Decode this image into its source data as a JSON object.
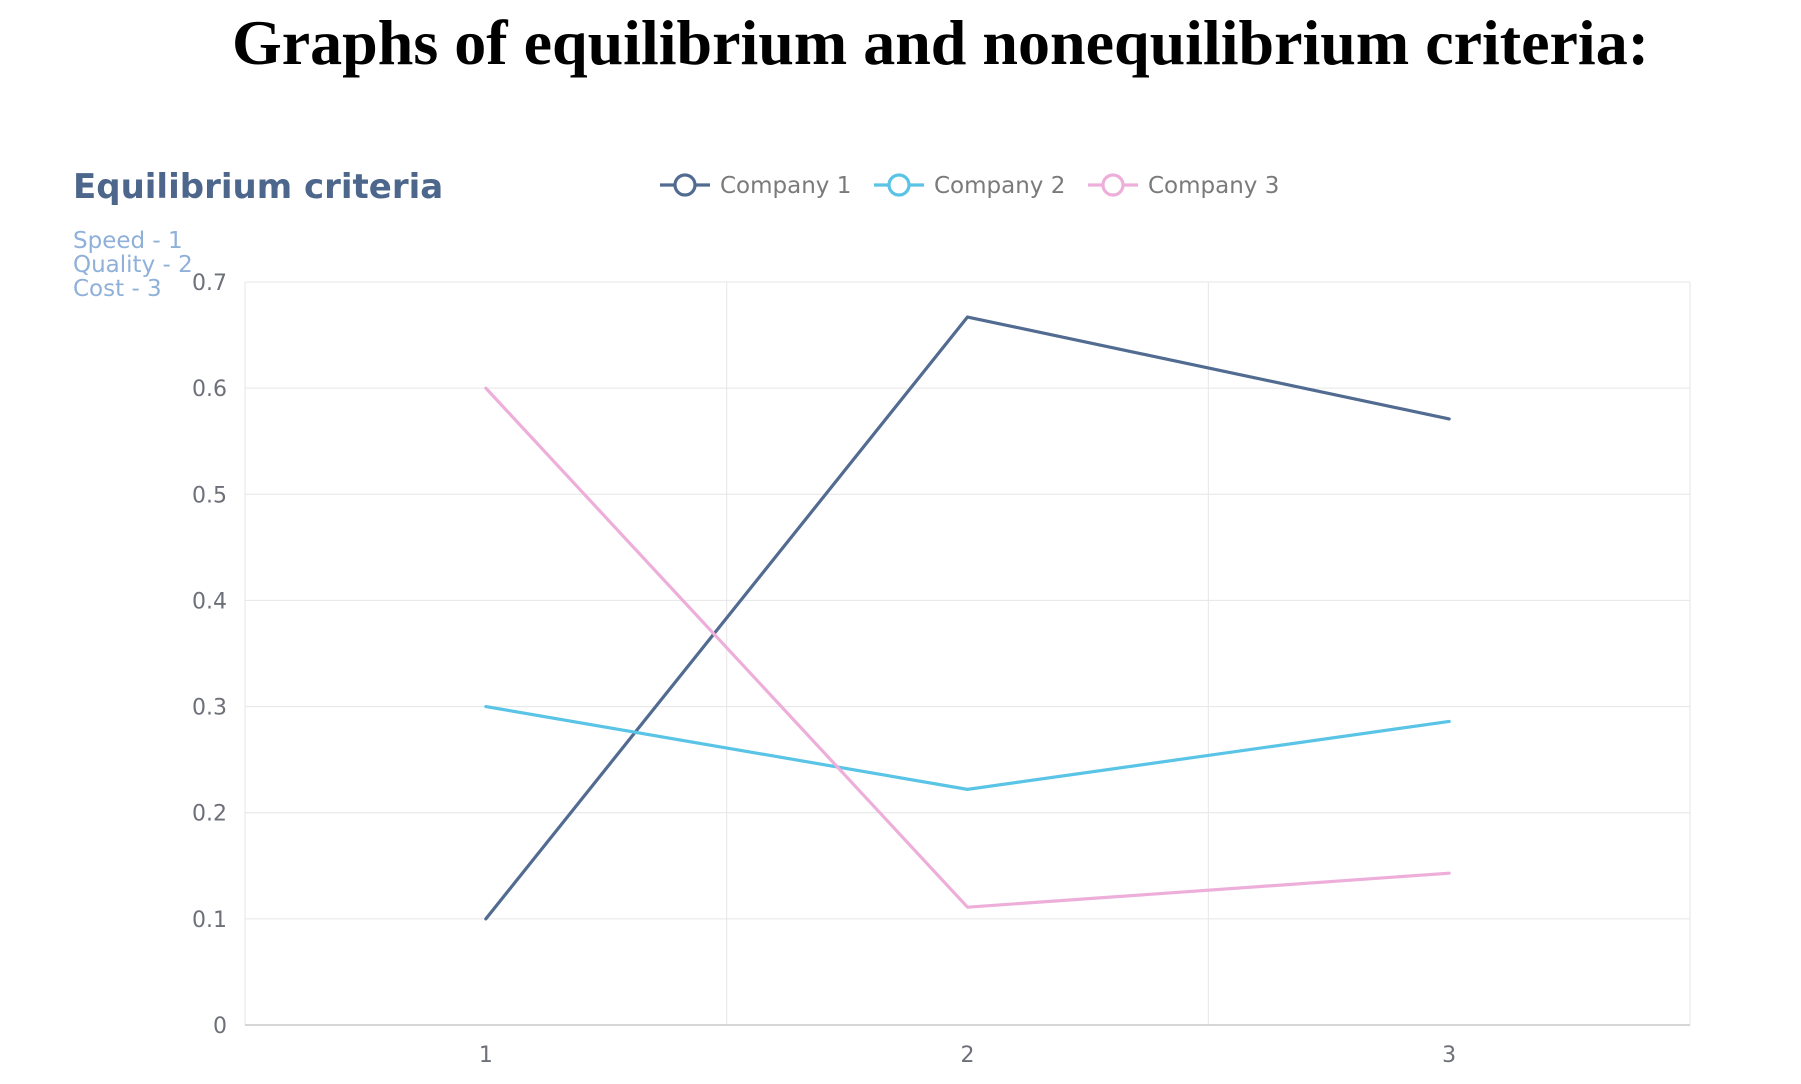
{
  "page": {
    "heading": "Graphs of equilibrium and nonequilibrium criteria:"
  },
  "chart_data": {
    "type": "line",
    "title": "Equilibrium criteria",
    "subtitle_lines": [
      "Speed - 1",
      "Quality - 2",
      "Cost - 3"
    ],
    "categories": [
      "1",
      "2",
      "3"
    ],
    "ylim": [
      0,
      0.7
    ],
    "yticks": [
      0,
      0.1,
      0.2,
      0.3,
      0.4,
      0.5,
      0.6,
      0.7
    ],
    "ytick_labels": [
      "0",
      "0.1",
      "0.2",
      "0.3",
      "0.4",
      "0.5",
      "0.6",
      "0.7"
    ],
    "grid": true,
    "legend_position": "top",
    "series": [
      {
        "name": "Company 1",
        "color": "#516b91",
        "values": [
          0.1,
          0.667,
          0.571
        ]
      },
      {
        "name": "Company 2",
        "color": "#59c4e6",
        "values": [
          0.3,
          0.222,
          0.286
        ]
      },
      {
        "name": "Company 3",
        "color": "#edafda",
        "values": [
          0.6,
          0.111,
          0.143
        ]
      }
    ]
  }
}
